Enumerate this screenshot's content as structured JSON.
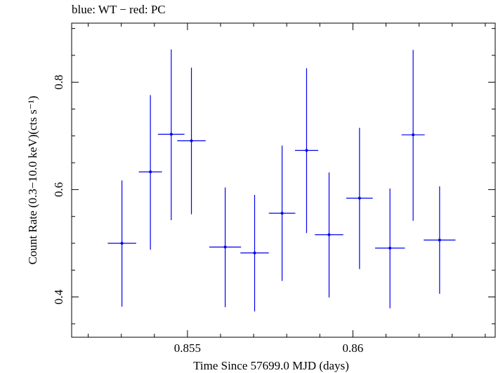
{
  "chart_data": {
    "type": "scatter",
    "title": "blue: WT − red: PC",
    "xlabel": "Time Since 57699.0 MJD (days)",
    "ylabel": "Count Rate (0.3−10.0 keV)(cts s⁻¹)",
    "xlim": [
      0.8515,
      0.8643
    ],
    "ylim": [
      0.325,
      0.91
    ],
    "x_ticks": [
      0.855,
      0.86
    ],
    "x_tick_labels": [
      "0.855",
      "0.86"
    ],
    "x_minor_step": 0.001,
    "y_ticks": [
      0.4,
      0.6,
      0.8
    ],
    "y_tick_labels": [
      "0.4",
      "0.6",
      "0.8"
    ],
    "y_minor_step": 0.05,
    "grid": false,
    "series": [
      {
        "color": "#0000ee",
        "points": [
          {
            "x": 0.85302,
            "xerr": 0.00043,
            "y": 0.5,
            "yerr_lo": 0.118,
            "yerr_hi": 0.117
          },
          {
            "x": 0.85388,
            "xerr": 0.00035,
            "y": 0.633,
            "yerr_lo": 0.145,
            "yerr_hi": 0.143
          },
          {
            "x": 0.85451,
            "xerr": 0.0004,
            "y": 0.703,
            "yerr_lo": 0.16,
            "yerr_hi": 0.158
          },
          {
            "x": 0.85512,
            "xerr": 0.00043,
            "y": 0.691,
            "yerr_lo": 0.137,
            "yerr_hi": 0.136
          },
          {
            "x": 0.85614,
            "xerr": 0.00048,
            "y": 0.493,
            "yerr_lo": 0.112,
            "yerr_hi": 0.111
          },
          {
            "x": 0.85703,
            "xerr": 0.00043,
            "y": 0.482,
            "yerr_lo": 0.109,
            "yerr_hi": 0.108
          },
          {
            "x": 0.85786,
            "xerr": 0.0004,
            "y": 0.556,
            "yerr_lo": 0.126,
            "yerr_hi": 0.126
          },
          {
            "x": 0.8586,
            "xerr": 0.00035,
            "y": 0.673,
            "yerr_lo": 0.154,
            "yerr_hi": 0.153
          },
          {
            "x": 0.85928,
            "xerr": 0.00043,
            "y": 0.516,
            "yerr_lo": 0.117,
            "yerr_hi": 0.116
          },
          {
            "x": 0.8602,
            "xerr": 0.0004,
            "y": 0.584,
            "yerr_lo": 0.132,
            "yerr_hi": 0.131
          },
          {
            "x": 0.86112,
            "xerr": 0.00045,
            "y": 0.491,
            "yerr_lo": 0.112,
            "yerr_hi": 0.111
          },
          {
            "x": 0.86182,
            "xerr": 0.00035,
            "y": 0.702,
            "yerr_lo": 0.16,
            "yerr_hi": 0.158
          },
          {
            "x": 0.86262,
            "xerr": 0.00048,
            "y": 0.506,
            "yerr_lo": 0.1,
            "yerr_hi": 0.1
          }
        ]
      }
    ]
  }
}
